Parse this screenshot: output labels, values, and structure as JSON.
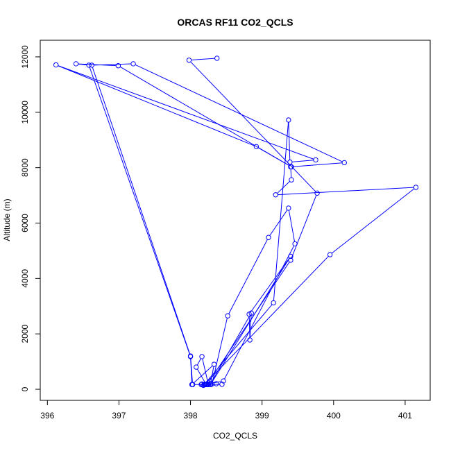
{
  "chart_data": {
    "type": "line",
    "title": "ORCAS RF11 CO2_QCLS",
    "xlabel": "CO2_QCLS",
    "ylabel": "Altitude (m)",
    "xlim": [
      395.9,
      401.35
    ],
    "ylim": [
      -400,
      12600
    ],
    "xticks": [
      396,
      397,
      398,
      399,
      400,
      401
    ],
    "yticks": [
      0,
      2000,
      4000,
      6000,
      8000,
      10000,
      12000
    ],
    "grid": false,
    "legend": "none",
    "series": [
      {
        "color": "#0000ff",
        "marker": "open-circle",
        "points": [
          [
            398.37,
            11950
          ],
          [
            397.98,
            11880
          ],
          [
            399.77,
            7080
          ],
          [
            399.4,
            4660
          ],
          [
            398.23,
            170
          ],
          [
            398.18,
            140
          ],
          [
            398.15,
            170
          ],
          [
            398.2,
            180
          ],
          [
            399.95,
            4860
          ],
          [
            401.15,
            7290
          ],
          [
            399.19,
            7020
          ],
          [
            399.41,
            7560
          ],
          [
            399.4,
            8030
          ],
          [
            400.15,
            8180
          ],
          [
            397.2,
            11750
          ],
          [
            396.62,
            11700
          ],
          [
            398.0,
            1200
          ],
          [
            398.03,
            170
          ],
          [
            398.22,
            170
          ],
          [
            398.08,
            800
          ],
          [
            398.16,
            1180
          ],
          [
            398.25,
            170
          ],
          [
            398.44,
            180
          ],
          [
            398.19,
            170
          ],
          [
            399.16,
            3120
          ],
          [
            399.37,
            9720
          ],
          [
            399.39,
            8200
          ],
          [
            399.75,
            8280
          ],
          [
            396.12,
            11710
          ],
          [
            398.92,
            8760
          ],
          [
            399.41,
            8030
          ],
          [
            396.99,
            11680
          ],
          [
            396.4,
            11750
          ],
          [
            396.58,
            11700
          ],
          [
            398.0,
            1180
          ],
          [
            398.02,
            170
          ],
          [
            398.33,
            900
          ],
          [
            398.28,
            200
          ],
          [
            398.85,
            2750
          ],
          [
            398.83,
            1780
          ],
          [
            398.82,
            2710
          ],
          [
            399.4,
            4800
          ],
          [
            398.28,
            170
          ],
          [
            398.36,
            200
          ],
          [
            398.3,
            190
          ],
          [
            398.52,
            2650
          ],
          [
            399.09,
            5480
          ],
          [
            399.37,
            6540
          ],
          [
            399.46,
            5250
          ],
          [
            398.46,
            300
          ],
          [
            398.21,
            170
          ],
          [
            398.16,
            190
          ]
        ]
      }
    ]
  }
}
